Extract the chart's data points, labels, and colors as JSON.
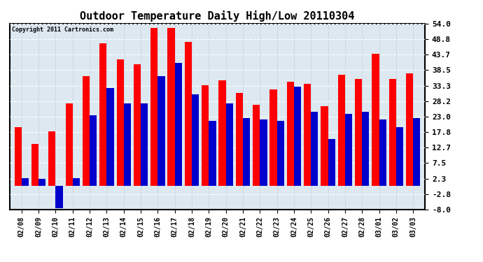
{
  "title": "Outdoor Temperature Daily High/Low 20110304",
  "copyright": "Copyright 2011 Cartronics.com",
  "dates": [
    "02/08",
    "02/09",
    "02/10",
    "02/11",
    "02/12",
    "02/13",
    "02/14",
    "02/15",
    "02/16",
    "02/17",
    "02/18",
    "02/19",
    "02/20",
    "02/21",
    "02/22",
    "02/23",
    "02/24",
    "02/25",
    "02/26",
    "02/27",
    "02/28",
    "03/01",
    "03/02",
    "03/03"
  ],
  "highs": [
    19.5,
    14.0,
    18.0,
    27.5,
    36.5,
    47.5,
    42.0,
    40.5,
    52.5,
    52.5,
    48.0,
    33.5,
    35.0,
    31.0,
    27.0,
    32.0,
    34.5,
    34.0,
    26.5,
    37.0,
    35.5,
    44.0,
    35.5,
    37.5
  ],
  "lows": [
    2.5,
    2.3,
    -7.5,
    2.5,
    23.5,
    32.5,
    27.5,
    27.5,
    36.5,
    41.0,
    30.5,
    21.5,
    27.5,
    22.5,
    22.0,
    21.5,
    33.0,
    24.5,
    15.5,
    24.0,
    24.5,
    22.0,
    19.5,
    22.5
  ],
  "high_color": "#ff0000",
  "low_color": "#0000cc",
  "bg_color": "#ffffff",
  "plot_bg_color": "#dde8f0",
  "grid_color": "#aaaacc",
  "yticks": [
    -8.0,
    -2.8,
    2.3,
    7.5,
    12.7,
    17.8,
    23.0,
    28.2,
    33.3,
    38.5,
    43.7,
    48.8,
    54.0
  ],
  "ylim": [
    -8.0,
    54.0
  ],
  "bar_width": 0.42,
  "figsize": [
    6.9,
    3.75
  ],
  "dpi": 100
}
